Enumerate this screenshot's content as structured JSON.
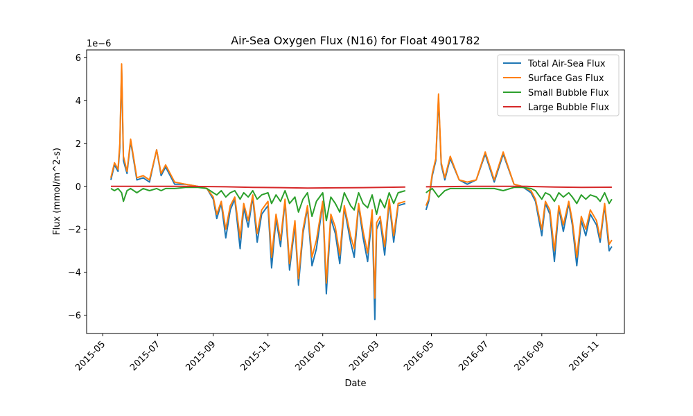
{
  "chart_data": {
    "type": "line",
    "title": "Air-Sea Oxygen Flux (N16) for Float 4901782",
    "xlabel": "Date",
    "ylabel": "Flux (mmol/m^2-s)",
    "y_offset_label": "1e−6",
    "y_multiplier": 1e-06,
    "xlim": [
      "2015-04-13",
      "2016-12-02"
    ],
    "ylim": [
      -6.85,
      6.35
    ],
    "x_ticks": [
      "2015-05-01",
      "2015-07-01",
      "2015-09-01",
      "2015-11-01",
      "2016-01-01",
      "2016-03-01",
      "2016-05-01",
      "2016-07-01",
      "2016-09-01",
      "2016-11-01"
    ],
    "x_tick_labels": [
      "2015-05",
      "2015-07",
      "2015-09",
      "2015-11",
      "2016-01",
      "2016-03",
      "2016-05",
      "2016-07",
      "2016-09",
      "2016-11"
    ],
    "y_ticks": [
      -6,
      -4,
      -2,
      0,
      2,
      4,
      6
    ],
    "y_tick_labels": [
      "−6",
      "−4",
      "−2",
      "0",
      "2",
      "4",
      "6"
    ],
    "grid": false,
    "legend_position": "top-right",
    "series": [
      {
        "name": "Total Air-Sea Flux",
        "color": "#1f77b4",
        "x": [
          "2015-05-10",
          "2015-05-14",
          "2015-05-18",
          "2015-05-20",
          "2015-05-22",
          "2015-05-24",
          "2015-05-28",
          "2015-06-01",
          "2015-06-08",
          "2015-06-15",
          "2015-06-22",
          "2015-06-30",
          "2015-07-05",
          "2015-07-10",
          "2015-07-20",
          "2015-08-01",
          "2015-08-15",
          "2015-08-25",
          "2015-09-01",
          "2015-09-05",
          "2015-09-10",
          "2015-09-15",
          "2015-09-20",
          "2015-09-25",
          "2015-10-01",
          "2015-10-05",
          "2015-10-10",
          "2015-10-15",
          "2015-10-20",
          "2015-10-25",
          "2015-11-01",
          "2015-11-05",
          "2015-11-10",
          "2015-11-15",
          "2015-11-20",
          "2015-11-25",
          "2015-12-01",
          "2015-12-05",
          "2015-12-10",
          "2015-12-15",
          "2015-12-20",
          "2015-12-25",
          "2016-01-01",
          "2016-01-05",
          "2016-01-10",
          "2016-01-15",
          "2016-01-20",
          "2016-01-25",
          "2016-02-01",
          "2016-02-05",
          "2016-02-10",
          "2016-02-15",
          "2016-02-20",
          "2016-02-25",
          "2016-02-28",
          "2016-03-01",
          "2016-03-05",
          "2016-03-10",
          "2016-03-15",
          "2016-03-20",
          "2016-03-25",
          "2016-04-02",
          null,
          "2016-04-25",
          "2016-04-28",
          "2016-05-02",
          "2016-05-06",
          "2016-05-09",
          "2016-05-12",
          "2016-05-16",
          "2016-05-22",
          "2016-06-01",
          "2016-06-10",
          "2016-06-20",
          "2016-06-30",
          "2016-07-10",
          "2016-07-20",
          "2016-08-01",
          "2016-08-10",
          "2016-08-20",
          "2016-08-25",
          "2016-09-01",
          "2016-09-05",
          "2016-09-10",
          "2016-09-15",
          "2016-09-20",
          "2016-09-25",
          "2016-10-01",
          "2016-10-05",
          "2016-10-10",
          "2016-10-15",
          "2016-10-20",
          "2016-10-25",
          "2016-11-01",
          "2016-11-05",
          "2016-11-10",
          "2016-11-15",
          "2016-11-18"
        ],
        "y": [
          0.3,
          1.0,
          0.7,
          1.8,
          5.5,
          1.2,
          0.6,
          2.1,
          0.3,
          0.4,
          0.2,
          1.7,
          0.5,
          0.9,
          0.1,
          0.1,
          0.0,
          -0.1,
          -0.6,
          -1.5,
          -0.8,
          -2.4,
          -1.1,
          -0.6,
          -2.9,
          -1.0,
          -1.9,
          -0.5,
          -2.6,
          -1.3,
          -0.9,
          -3.8,
          -1.5,
          -2.8,
          -0.7,
          -3.9,
          -1.8,
          -4.6,
          -2.2,
          -1.0,
          -3.7,
          -2.9,
          -0.8,
          -5.0,
          -1.5,
          -2.2,
          -3.6,
          -1.0,
          -2.6,
          -3.3,
          -0.9,
          -2.4,
          -3.5,
          -1.3,
          -6.2,
          -2.0,
          -1.6,
          -3.2,
          -0.7,
          -2.6,
          -0.9,
          -0.8,
          null,
          -1.1,
          -0.7,
          0.5,
          1.2,
          4.1,
          1.0,
          0.3,
          1.3,
          0.3,
          0.1,
          0.3,
          1.5,
          0.2,
          1.5,
          0.1,
          0.0,
          -0.3,
          -0.7,
          -2.3,
          -0.8,
          -1.3,
          -3.5,
          -1.0,
          -2.1,
          -0.8,
          -1.8,
          -3.7,
          -1.6,
          -2.3,
          -1.3,
          -1.8,
          -2.6,
          -0.9,
          -3.0,
          -2.8
        ]
      },
      {
        "name": "Surface Gas Flux",
        "color": "#ff7f0e",
        "x": [
          "2015-05-10",
          "2015-05-14",
          "2015-05-18",
          "2015-05-20",
          "2015-05-22",
          "2015-05-24",
          "2015-05-28",
          "2015-06-01",
          "2015-06-08",
          "2015-06-15",
          "2015-06-22",
          "2015-06-30",
          "2015-07-05",
          "2015-07-10",
          "2015-07-20",
          "2015-08-01",
          "2015-08-15",
          "2015-08-25",
          "2015-09-01",
          "2015-09-05",
          "2015-09-10",
          "2015-09-15",
          "2015-09-20",
          "2015-09-25",
          "2015-10-01",
          "2015-10-05",
          "2015-10-10",
          "2015-10-15",
          "2015-10-20",
          "2015-10-25",
          "2015-11-01",
          "2015-11-05",
          "2015-11-10",
          "2015-11-15",
          "2015-11-20",
          "2015-11-25",
          "2015-12-01",
          "2015-12-05",
          "2015-12-10",
          "2015-12-15",
          "2015-12-20",
          "2015-12-25",
          "2016-01-01",
          "2016-01-05",
          "2016-01-10",
          "2016-01-15",
          "2016-01-20",
          "2016-01-25",
          "2016-02-01",
          "2016-02-05",
          "2016-02-10",
          "2016-02-15",
          "2016-02-20",
          "2016-02-25",
          "2016-02-28",
          "2016-03-01",
          "2016-03-05",
          "2016-03-10",
          "2016-03-15",
          "2016-03-20",
          "2016-03-25",
          "2016-04-02",
          null,
          "2016-04-25",
          "2016-04-28",
          "2016-05-02",
          "2016-05-06",
          "2016-05-09",
          "2016-05-12",
          "2016-05-16",
          "2016-05-22",
          "2016-06-01",
          "2016-06-10",
          "2016-06-20",
          "2016-06-30",
          "2016-07-10",
          "2016-07-20",
          "2016-08-01",
          "2016-08-10",
          "2016-08-20",
          "2016-08-25",
          "2016-09-01",
          "2016-09-05",
          "2016-09-10",
          "2016-09-15",
          "2016-09-20",
          "2016-09-25",
          "2016-10-01",
          "2016-10-05",
          "2016-10-10",
          "2016-10-15",
          "2016-10-20",
          "2016-10-25",
          "2016-11-01",
          "2016-11-05",
          "2016-11-10",
          "2016-11-15",
          "2016-11-18"
        ],
        "y": [
          0.4,
          1.1,
          0.8,
          2.0,
          5.7,
          1.4,
          0.7,
          2.2,
          0.4,
          0.5,
          0.3,
          1.7,
          0.6,
          1.0,
          0.2,
          0.1,
          0.0,
          -0.1,
          -0.5,
          -1.3,
          -0.7,
          -2.0,
          -0.9,
          -0.5,
          -2.4,
          -0.8,
          -1.6,
          -0.4,
          -2.2,
          -1.1,
          -0.7,
          -3.3,
          -1.3,
          -2.5,
          -0.6,
          -3.6,
          -1.6,
          -4.3,
          -2.0,
          -0.9,
          -3.3,
          -2.5,
          -0.7,
          -4.5,
          -1.3,
          -1.9,
          -3.2,
          -0.9,
          -2.3,
          -2.9,
          -0.8,
          -2.1,
          -3.1,
          -1.1,
          -5.2,
          -1.7,
          -1.4,
          -2.8,
          -0.6,
          -2.3,
          -0.8,
          -0.7,
          null,
          -0.9,
          -0.6,
          0.6,
          1.3,
          4.3,
          1.1,
          0.4,
          1.4,
          0.3,
          0.2,
          0.3,
          1.6,
          0.3,
          1.6,
          0.1,
          0.0,
          -0.2,
          -0.6,
          -2.0,
          -0.7,
          -1.1,
          -3.0,
          -0.9,
          -1.8,
          -0.7,
          -1.6,
          -3.3,
          -1.4,
          -2.0,
          -1.1,
          -1.6,
          -2.4,
          -0.8,
          -2.7,
          -2.5
        ]
      },
      {
        "name": "Small Bubble Flux",
        "color": "#2ca02c",
        "x": [
          "2015-05-10",
          "2015-05-14",
          "2015-05-18",
          "2015-05-22",
          "2015-05-24",
          "2015-05-28",
          "2015-06-01",
          "2015-06-08",
          "2015-06-15",
          "2015-06-22",
          "2015-06-30",
          "2015-07-05",
          "2015-07-10",
          "2015-07-20",
          "2015-08-01",
          "2015-08-15",
          "2015-08-25",
          "2015-09-01",
          "2015-09-05",
          "2015-09-10",
          "2015-09-15",
          "2015-09-20",
          "2015-09-25",
          "2015-10-01",
          "2015-10-05",
          "2015-10-10",
          "2015-10-15",
          "2015-10-20",
          "2015-10-25",
          "2015-11-01",
          "2015-11-05",
          "2015-11-10",
          "2015-11-15",
          "2015-11-20",
          "2015-11-25",
          "2015-12-01",
          "2015-12-05",
          "2015-12-10",
          "2015-12-15",
          "2015-12-20",
          "2015-12-25",
          "2016-01-01",
          "2016-01-05",
          "2016-01-10",
          "2016-01-15",
          "2016-01-20",
          "2016-01-25",
          "2016-02-01",
          "2016-02-05",
          "2016-02-10",
          "2016-02-15",
          "2016-02-20",
          "2016-02-25",
          "2016-03-01",
          "2016-03-05",
          "2016-03-10",
          "2016-03-15",
          "2016-03-20",
          "2016-03-25",
          "2016-04-02",
          null,
          "2016-04-25",
          "2016-04-28",
          "2016-05-02",
          "2016-05-09",
          "2016-05-16",
          "2016-05-22",
          "2016-06-01",
          "2016-06-10",
          "2016-06-20",
          "2016-06-30",
          "2016-07-10",
          "2016-07-20",
          "2016-08-01",
          "2016-08-10",
          "2016-08-20",
          "2016-08-25",
          "2016-09-01",
          "2016-09-05",
          "2016-09-10",
          "2016-09-15",
          "2016-09-20",
          "2016-09-25",
          "2016-10-01",
          "2016-10-05",
          "2016-10-10",
          "2016-10-15",
          "2016-10-20",
          "2016-10-25",
          "2016-11-01",
          "2016-11-05",
          "2016-11-10",
          "2016-11-15",
          "2016-11-18"
        ],
        "y": [
          -0.1,
          -0.2,
          -0.1,
          -0.3,
          -0.7,
          -0.2,
          -0.1,
          -0.3,
          -0.1,
          -0.2,
          -0.1,
          -0.2,
          -0.1,
          -0.1,
          -0.05,
          -0.05,
          -0.1,
          -0.3,
          -0.4,
          -0.2,
          -0.5,
          -0.3,
          -0.2,
          -0.6,
          -0.3,
          -0.5,
          -0.2,
          -0.6,
          -0.4,
          -0.3,
          -0.8,
          -0.4,
          -0.7,
          -0.2,
          -0.8,
          -0.5,
          -1.2,
          -0.6,
          -0.3,
          -1.4,
          -0.7,
          -0.3,
          -1.6,
          -0.5,
          -0.8,
          -1.2,
          -0.3,
          -0.9,
          -1.1,
          -0.3,
          -0.8,
          -1.0,
          -0.4,
          -1.3,
          -0.6,
          -1.0,
          -0.3,
          -0.8,
          -0.3,
          -0.2,
          null,
          -0.3,
          -0.2,
          -0.1,
          -0.5,
          -0.2,
          -0.1,
          -0.1,
          -0.1,
          -0.1,
          -0.1,
          -0.1,
          -0.2,
          -0.05,
          -0.05,
          -0.1,
          -0.2,
          -0.6,
          -0.3,
          -0.4,
          -0.7,
          -0.3,
          -0.5,
          -0.3,
          -0.5,
          -0.8,
          -0.4,
          -0.6,
          -0.4,
          -0.5,
          -0.7,
          -0.3,
          -0.8,
          -0.6
        ]
      },
      {
        "name": "Large Bubble Flux",
        "color": "#d62728",
        "x": [
          "2015-05-10",
          "2015-06-15",
          "2015-08-01",
          "2015-09-15",
          "2015-10-15",
          "2015-11-15",
          "2015-12-15",
          "2016-01-15",
          "2016-02-15",
          "2016-04-02",
          null,
          "2016-04-25",
          "2016-06-15",
          "2016-08-15",
          "2016-09-15",
          "2016-10-15",
          "2016-11-18"
        ],
        "y": [
          0.0,
          0.0,
          0.0,
          -0.02,
          -0.05,
          -0.06,
          -0.08,
          -0.07,
          -0.06,
          -0.03,
          null,
          -0.02,
          0.0,
          0.0,
          -0.03,
          -0.05,
          -0.04
        ]
      }
    ]
  }
}
